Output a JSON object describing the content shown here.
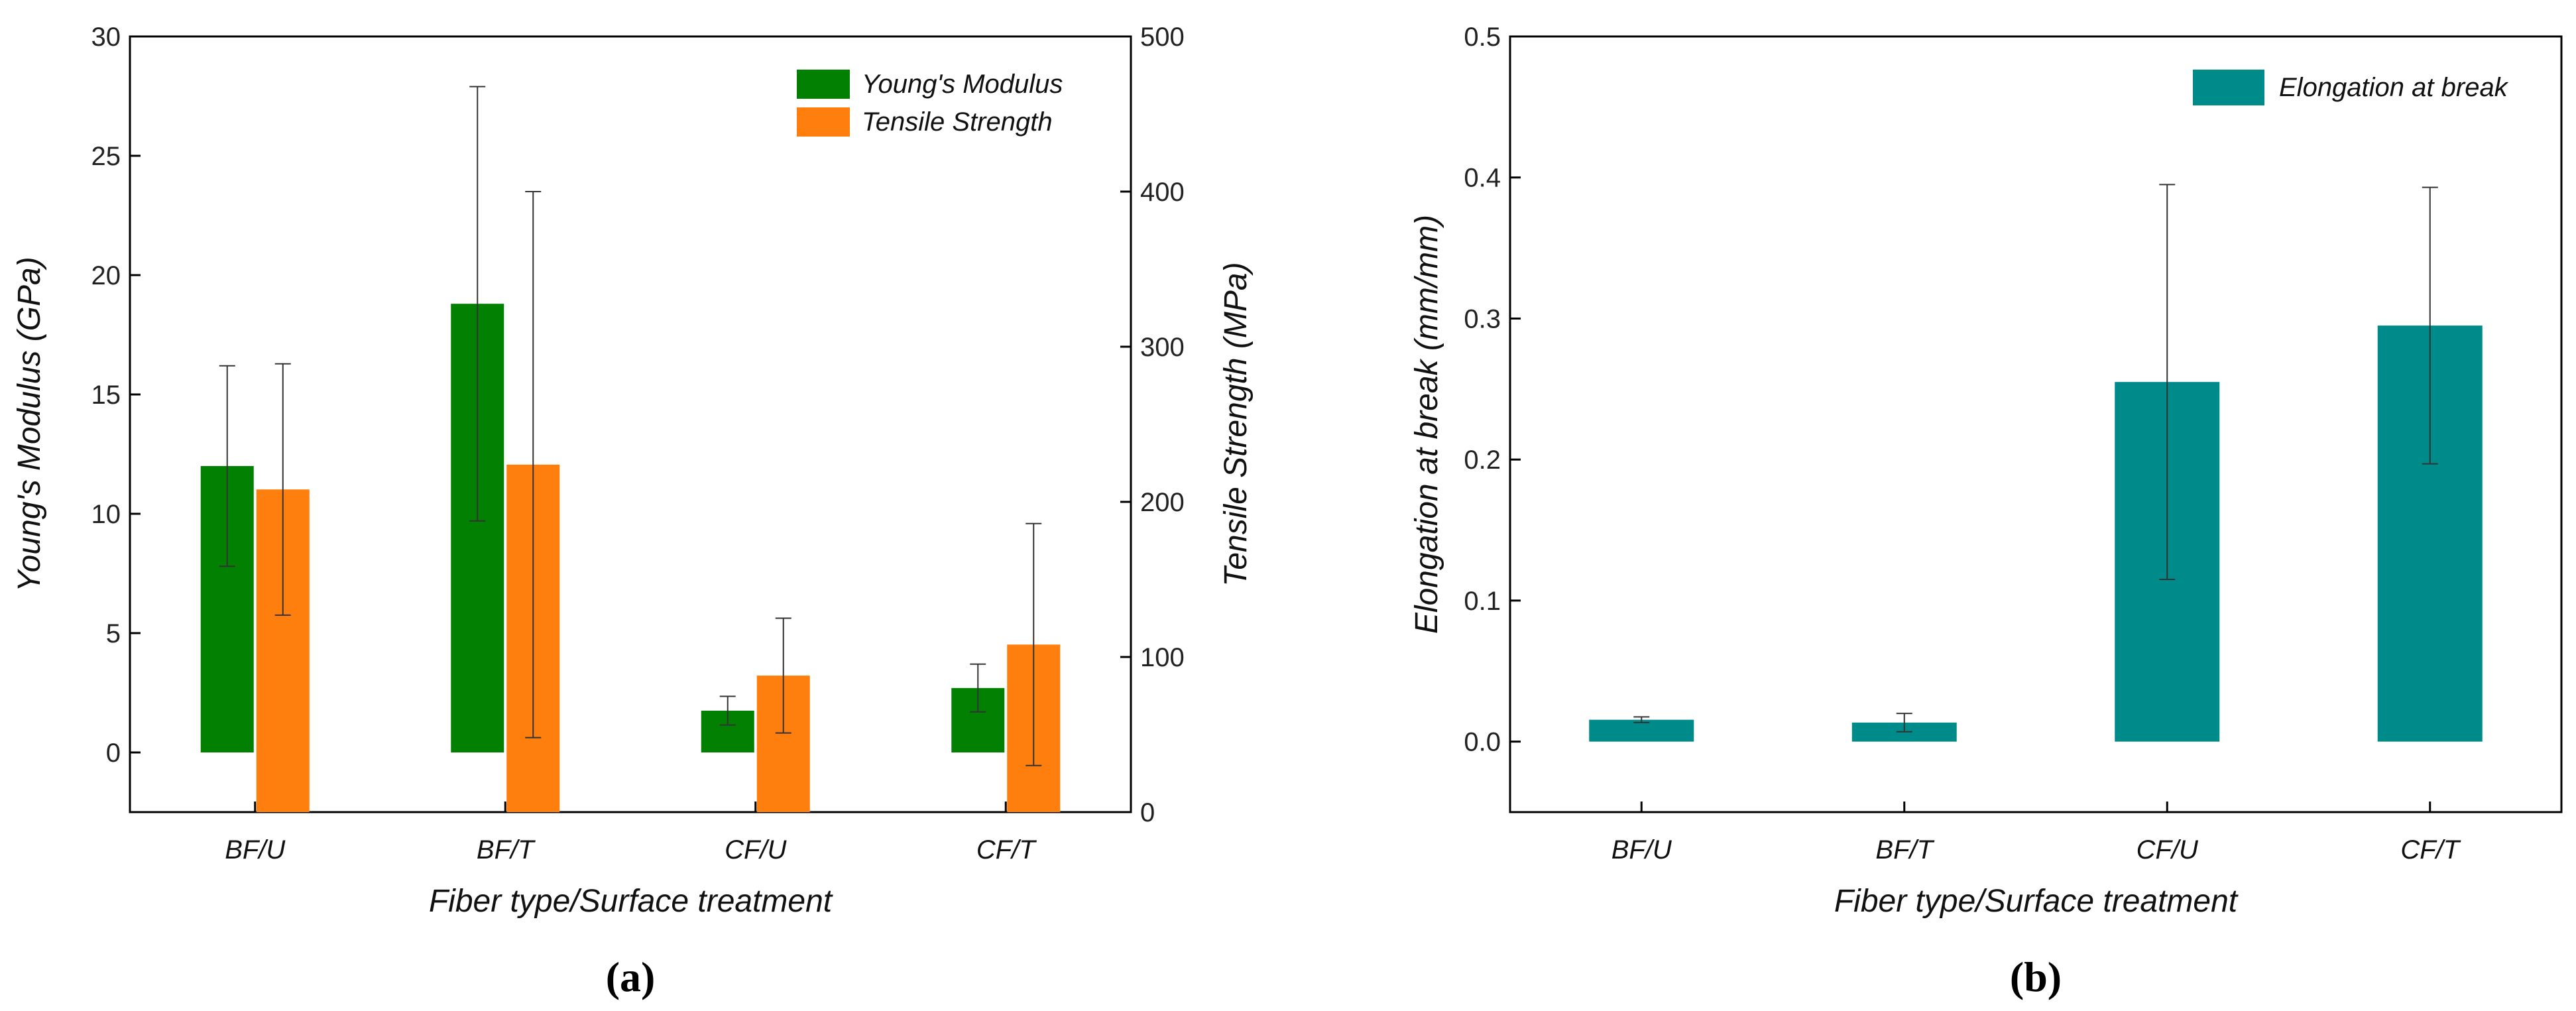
{
  "chart_data": [
    {
      "panel_label": "(a)",
      "type": "bar",
      "categories": [
        "BF/U",
        "BF/T",
        "CF/U",
        "CF/T"
      ],
      "xlabel": "Fiber type/Surface treatment",
      "ylabel": "Young's Modulus (GPa)",
      "y2label": "Tensile Strength (MPa)",
      "ylim": [
        -2.5,
        30
      ],
      "yticks": [
        0,
        5,
        10,
        15,
        20,
        25,
        30
      ],
      "y2lim": [
        0,
        500
      ],
      "y2ticks": [
        0,
        100,
        200,
        300,
        400,
        500
      ],
      "legend_position": "top-right",
      "series": [
        {
          "name": "Young's Modulus",
          "axis": "left",
          "color": "#028002",
          "values": [
            12.0,
            18.8,
            1.75,
            2.7
          ],
          "errors": [
            4.2,
            9.1,
            0.6,
            1.0
          ]
        },
        {
          "name": "Tensile Strength",
          "axis": "right",
          "color": "#ff7f0e",
          "values": [
            208,
            224,
            88,
            108
          ],
          "errors": [
            81,
            176,
            37,
            78
          ]
        }
      ]
    },
    {
      "panel_label": "(b)",
      "type": "bar",
      "categories": [
        "BF/U",
        "BF/T",
        "CF/U",
        "CF/T"
      ],
      "xlabel": "Fiber type/Surface treatment",
      "ylabel": "Elongation at break (mm/mm)",
      "ylim": [
        -0.05,
        0.5
      ],
      "yticks": [
        0.0,
        0.1,
        0.2,
        0.3,
        0.4,
        0.5
      ],
      "legend_position": "top-right",
      "series": [
        {
          "name": "Elongation at break",
          "axis": "left",
          "color": "#008b8b",
          "values": [
            0.0155,
            0.0135,
            0.255,
            0.295
          ],
          "errors": [
            0.002,
            0.0065,
            0.14,
            0.098
          ]
        }
      ]
    }
  ]
}
